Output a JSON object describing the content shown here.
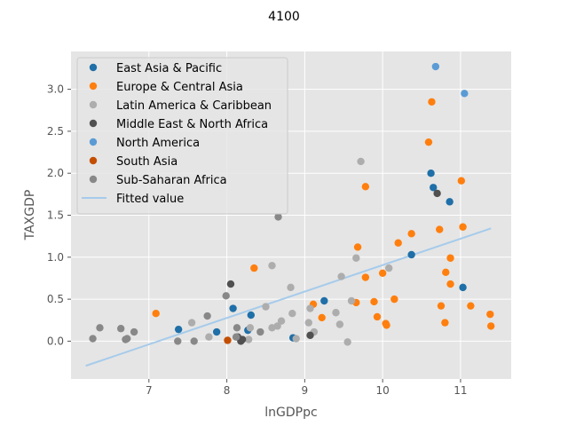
{
  "chart_data": {
    "type": "scatter",
    "title": "4100",
    "xlabel": "lnGDPpc",
    "ylabel": "TAXGDP",
    "xlim": [
      6.0,
      11.65
    ],
    "ylim": [
      -0.45,
      3.45
    ],
    "xticks": [
      7,
      8,
      9,
      10,
      11
    ],
    "yticks": [
      0.0,
      0.5,
      1.0,
      1.5,
      2.0,
      2.5,
      3.0
    ],
    "xtick_labels": [
      "7",
      "8",
      "9",
      "10",
      "11"
    ],
    "ytick_labels": [
      "0.0",
      "0.5",
      "1.0",
      "1.5",
      "2.0",
      "2.5",
      "3.0"
    ],
    "grid": true,
    "legend_position": "upper-left",
    "series": [
      {
        "name": "East Asia & Pacific",
        "color": "#1f6fa8",
        "points": [
          [
            7.38,
            0.14
          ],
          [
            7.87,
            0.11
          ],
          [
            8.08,
            0.39
          ],
          [
            8.27,
            0.13
          ],
          [
            8.31,
            0.31
          ],
          [
            8.85,
            0.04
          ],
          [
            9.25,
            0.48
          ],
          [
            10.37,
            1.03
          ],
          [
            10.62,
            2.0
          ],
          [
            10.65,
            1.83
          ],
          [
            10.86,
            1.66
          ],
          [
            11.03,
            0.64
          ]
        ]
      },
      {
        "name": "Europe & Central Asia",
        "color": "#ff7f0e",
        "points": [
          [
            7.09,
            0.33
          ],
          [
            8.35,
            0.87
          ],
          [
            9.11,
            0.44
          ],
          [
            9.22,
            0.28
          ],
          [
            9.66,
            0.46
          ],
          [
            9.68,
            1.12
          ],
          [
            9.78,
            1.84
          ],
          [
            9.78,
            0.76
          ],
          [
            9.89,
            0.47
          ],
          [
            9.93,
            0.29
          ],
          [
            10.0,
            0.81
          ],
          [
            10.04,
            0.21
          ],
          [
            10.05,
            0.19
          ],
          [
            10.15,
            0.5
          ],
          [
            10.2,
            1.17
          ],
          [
            10.37,
            1.28
          ],
          [
            10.59,
            2.37
          ],
          [
            10.63,
            2.85
          ],
          [
            10.73,
            1.33
          ],
          [
            10.75,
            0.42
          ],
          [
            10.8,
            0.22
          ],
          [
            10.81,
            0.82
          ],
          [
            10.87,
            0.99
          ],
          [
            10.87,
            0.68
          ],
          [
            11.01,
            1.91
          ],
          [
            11.03,
            1.36
          ],
          [
            11.13,
            0.42
          ],
          [
            11.38,
            0.32
          ],
          [
            11.39,
            0.18
          ]
        ]
      },
      {
        "name": "Latin America & Caribbean",
        "color": "#adadad",
        "points": [
          [
            7.55,
            0.22
          ],
          [
            7.77,
            0.05
          ],
          [
            8.28,
            0.02
          ],
          [
            8.3,
            0.16
          ],
          [
            8.5,
            0.41
          ],
          [
            8.58,
            0.9
          ],
          [
            8.58,
            0.16
          ],
          [
            8.65,
            0.18
          ],
          [
            8.7,
            0.24
          ],
          [
            8.82,
            0.64
          ],
          [
            8.84,
            0.33
          ],
          [
            8.89,
            0.03
          ],
          [
            9.05,
            0.22
          ],
          [
            9.07,
            0.39
          ],
          [
            9.12,
            0.11
          ],
          [
            9.4,
            0.34
          ],
          [
            9.45,
            0.2
          ],
          [
            9.47,
            0.77
          ],
          [
            9.55,
            -0.01
          ],
          [
            9.6,
            0.48
          ],
          [
            9.66,
            0.99
          ],
          [
            9.72,
            2.14
          ],
          [
            10.08,
            0.87
          ]
        ]
      },
      {
        "name": "Middle East & North Africa",
        "color": "#505050",
        "points": [
          [
            8.05,
            0.68
          ],
          [
            8.14,
            0.05
          ],
          [
            8.18,
            0.0
          ],
          [
            8.2,
            0.02
          ],
          [
            9.07,
            0.07
          ],
          [
            10.7,
            1.76
          ]
        ]
      },
      {
        "name": "North America",
        "color": "#5b9bd5",
        "points": [
          [
            10.68,
            3.27
          ],
          [
            11.05,
            2.95
          ]
        ]
      },
      {
        "name": "South Asia",
        "color": "#c44e00",
        "points": [
          [
            8.01,
            0.01
          ]
        ]
      },
      {
        "name": "Sub-Saharan Africa",
        "color": "#888888",
        "points": [
          [
            6.28,
            0.03
          ],
          [
            6.37,
            0.16
          ],
          [
            6.64,
            0.15
          ],
          [
            6.7,
            0.02
          ],
          [
            6.72,
            0.03
          ],
          [
            6.81,
            0.11
          ],
          [
            7.37,
            0.0
          ],
          [
            7.58,
            0.0
          ],
          [
            7.75,
            0.3
          ],
          [
            7.99,
            0.54
          ],
          [
            8.12,
            0.05
          ],
          [
            8.13,
            0.16
          ],
          [
            8.43,
            0.11
          ],
          [
            8.66,
            1.48
          ]
        ]
      }
    ],
    "fitted_line": {
      "name": "Fitted value",
      "color": "#a6cbeb",
      "points": [
        [
          6.2,
          -0.29
        ],
        [
          11.38,
          1.34
        ]
      ]
    }
  }
}
